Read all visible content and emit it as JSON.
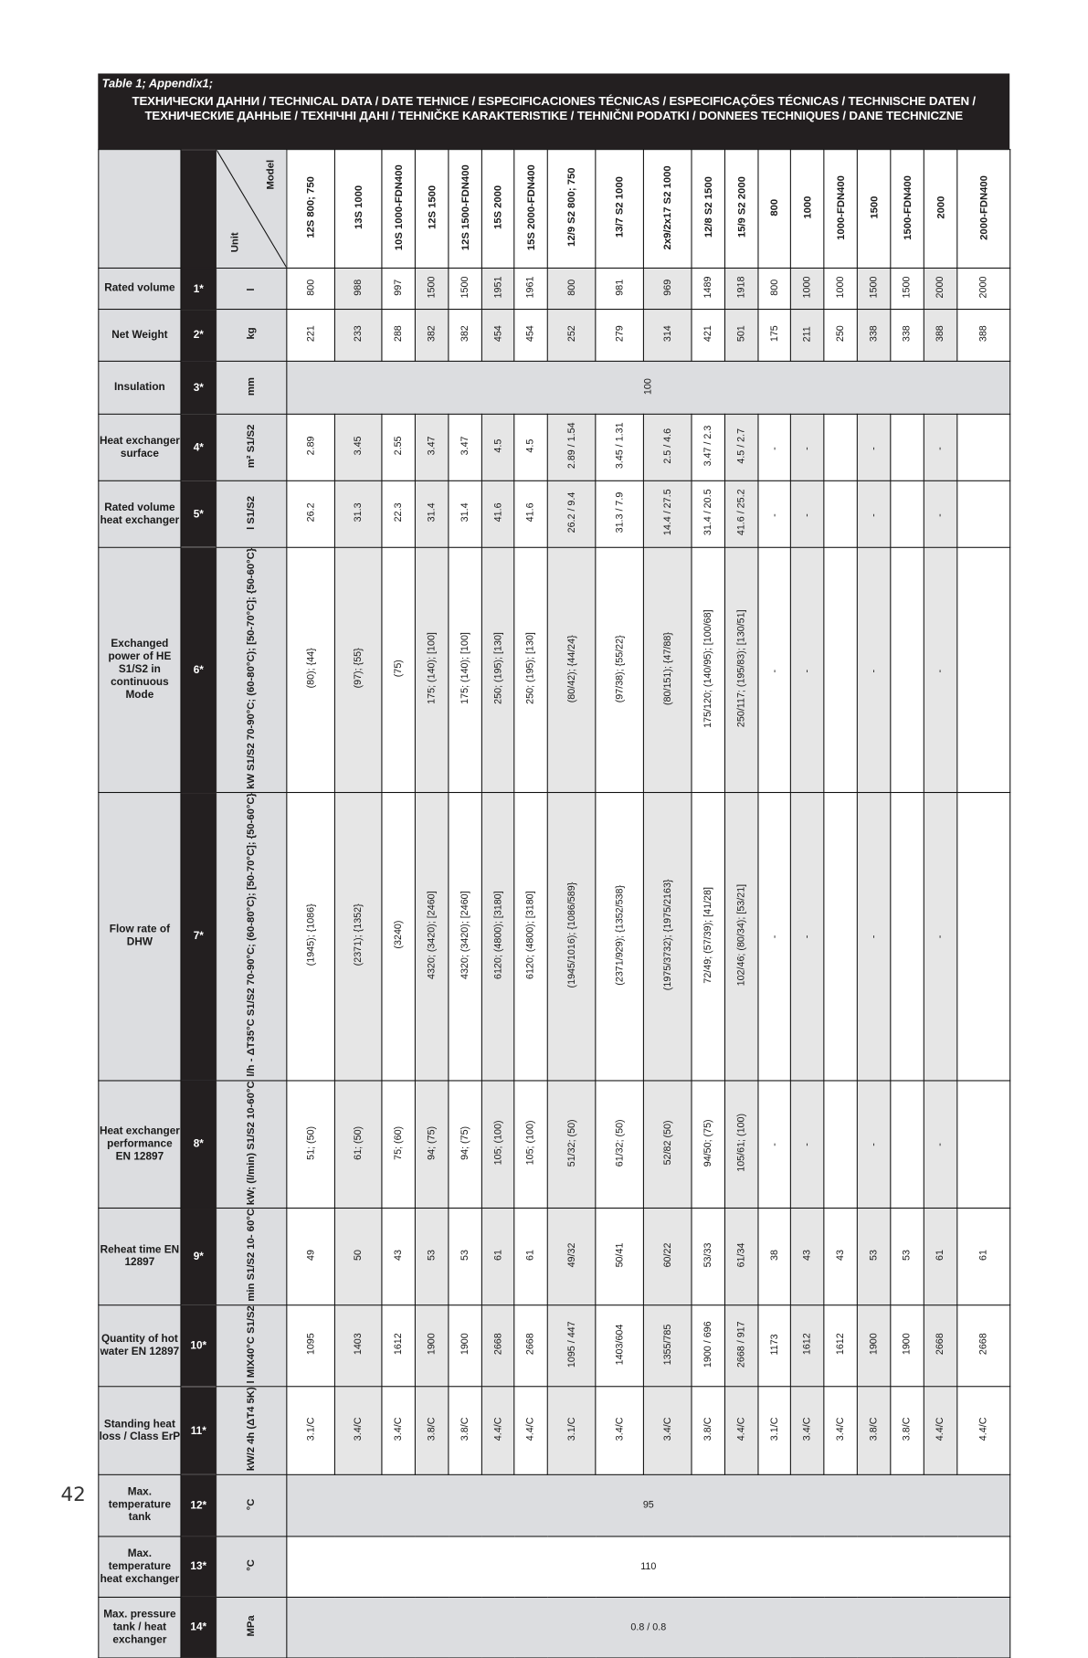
{
  "title": {
    "caption": "Table 1; Appendix1;",
    "heading": "ТЕХНИЧЕСКИ ДАННИ / TECHNICAL DATA / DATE TEHNICE / ESPECIFICACIONES TÉCNICAS / ESPECIFICAÇÕES TÉCNICAS / TECHNISCHE DATEN / ТЕХНИЧЕСКИЕ ДАННЫЕ / ТЕХНІЧНІ ДАНІ / TEHNIČKE KARAKTERISTIKE / TEHNIČNI PODATKI / DONNEES TECHNIQUES / DANE TECHNICZNE"
  },
  "header": {
    "model_label": "Model",
    "unit_label": "Unit"
  },
  "models": [
    "12S 800; 750",
    "13S 1000",
    "10S 1000-FDN400",
    "12S 1500",
    "12S 1500-FDN400",
    "15S 2000",
    "15S 2000-FDN400",
    "12/9 S2 800; 750",
    "13/7 S2 1000",
    "2x9/2x17 S2 1000",
    "12/8 S2 1500",
    "15/9 S2 2000",
    "800",
    "1000",
    "1000-FDN400",
    "1500",
    "1500-FDN400",
    "2000",
    "2000-FDN400"
  ],
  "rows": [
    {
      "label": "Rated volume",
      "num": "1*",
      "unit": "l",
      "values": [
        "800",
        "988",
        "997",
        "1500",
        "1500",
        "1951",
        "1961",
        "800",
        "981",
        "969",
        "1489",
        "1918",
        "800",
        "1000",
        "1000",
        "1500",
        "1500",
        "2000",
        "2000"
      ]
    },
    {
      "label": "Net Weight",
      "num": "2*",
      "unit": "kg",
      "values": [
        "221",
        "233",
        "288",
        "382",
        "382",
        "454",
        "454",
        "252",
        "279",
        "314",
        "421",
        "501",
        "175",
        "211",
        "250",
        "338",
        "338",
        "388",
        "388"
      ]
    },
    {
      "label": "Insulation",
      "num": "3*",
      "unit": "mm",
      "merged": "100"
    },
    {
      "label": "Heat exchanger surface",
      "num": "4*",
      "unit": "m² S1/S2",
      "values": [
        "2.89",
        "3.45",
        "2.55",
        "3.47",
        "3.47",
        "4.5",
        "4.5",
        "2.89 / 1.54",
        "3.45 / 1.31",
        "2.5 / 4.6",
        "3.47 / 2.3",
        "4.5 / 2.7",
        "-",
        "-",
        "",
        "-",
        "",
        "-",
        ""
      ]
    },
    {
      "label": "Rated volume heat exchanger",
      "num": "5*",
      "unit": "l S1/S2",
      "values": [
        "26.2",
        "31.3",
        "22.3",
        "31.4",
        "31.4",
        "41.6",
        "41.6",
        "26.2 / 9.4",
        "31.3 / 7.9",
        "14.4 / 27.5",
        "31.4 / 20.5",
        "41.6 / 25.2",
        "-",
        "-",
        "",
        "-",
        "",
        "-",
        ""
      ]
    },
    {
      "label": "Exchanged power of HE S1/S2 in continuous Mode",
      "num": "6*",
      "unit": "kW S1/S2 70-90°C; (60-80°C); [50-70°C]; {50-60°C}",
      "values": [
        "(80); {44}",
        "(97); {55}",
        "(75)",
        "175; (140); [100]",
        "175; (140); [100]",
        "250; (195); [130]",
        "250; (195); [130]",
        "(80/42); {44/24}",
        "(97/38); {55/22}",
        "(80/151); {47/88}",
        "175/120; (140/95); [100/68]",
        "250/117; (195/83); [130/51]",
        "-",
        "-",
        "",
        "-",
        "",
        "-",
        ""
      ]
    },
    {
      "label": "Flow rate of DHW",
      "num": "7*",
      "unit": "l/h - ΔT35°C S1/S2 70-90°C; (60-80°C); [50-70°C]; {50-60°C}",
      "values": [
        "(1945); {1086}",
        "(2371); {1352}",
        "(3240)",
        "4320; (3420); [2460]",
        "4320; (3420); [2460]",
        "6120; (4800); [3180]",
        "6120; (4800); [3180]",
        "(1945/1016); {1086/589}",
        "(2371/929); {1352/538}",
        "(1975/3732); {1975/2163}",
        "72/49; (57/39); [41/28]",
        "102/46; (80/34); [53/21]",
        "-",
        "-",
        "",
        "-",
        "",
        "-",
        ""
      ]
    },
    {
      "label": "Heat exchanger performance EN 12897",
      "num": "8*",
      "unit": "kW; (l/min) S1/S2 10-60°C",
      "values": [
        "51; (50)",
        "61; (50)",
        "75; (60)",
        "94; (75)",
        "94; (75)",
        "105; (100)",
        "105; (100)",
        "51/32; (50)",
        "61/32; (50)",
        "52/82 (50)",
        "94/50; (75)",
        "105/61; (100)",
        "-",
        "-",
        "",
        "-",
        "",
        "-",
        ""
      ]
    },
    {
      "label": "Reheat time EN 12897",
      "num": "9*",
      "unit": "min S1/S2 10- 60°C",
      "values": [
        "49",
        "50",
        "43",
        "53",
        "53",
        "61",
        "61",
        "49/32",
        "50/41",
        "60/22",
        "53/33",
        "61/34",
        "38",
        "43",
        "43",
        "53",
        "53",
        "61",
        "61"
      ]
    },
    {
      "label": "Quantity of hot water EN 12897",
      "num": "10*",
      "unit": "l MIX40°C S1/S2",
      "values": [
        "1095",
        "1403",
        "1612",
        "1900",
        "1900",
        "2668",
        "2668",
        "1095 / 447",
        "1403/604",
        "1355/785",
        "1900 / 696",
        "2668 / 917",
        "1173",
        "1612",
        "1612",
        "1900",
        "1900",
        "2668",
        "2668"
      ]
    },
    {
      "label": "Standing heat loss / Class ErP",
      "num": "11*",
      "unit": "kW/2 4h (ΔT4 5K)",
      "values": [
        "3.1/C",
        "3.4/C",
        "3.4/C",
        "3.8/C",
        "3.8/C",
        "4.4/C",
        "4.4/C",
        "3.1/C",
        "3.4/C",
        "3.4/C",
        "3.8/C",
        "4.4/C",
        "3.1/C",
        "3.4/C",
        "3.4/C",
        "3.8/C",
        "3.8/C",
        "4.4/C",
        "4.4/C"
      ]
    },
    {
      "label": "Max. temperature tank",
      "num": "12*",
      "unit": "°C",
      "merged": "95"
    },
    {
      "label": "Max. temperature heat exchanger",
      "num": "13*",
      "unit": "°C",
      "merged": "110"
    },
    {
      "label": "Max. pressure tank / heat exchanger",
      "num": "14*",
      "unit": "MPa",
      "merged": "0.8 / 0.8"
    }
  ],
  "page_number": "42",
  "colors": {
    "header_black": "#231f20",
    "label_gray": "#dcdde0",
    "stripe_gray": "#e6e6e6"
  }
}
